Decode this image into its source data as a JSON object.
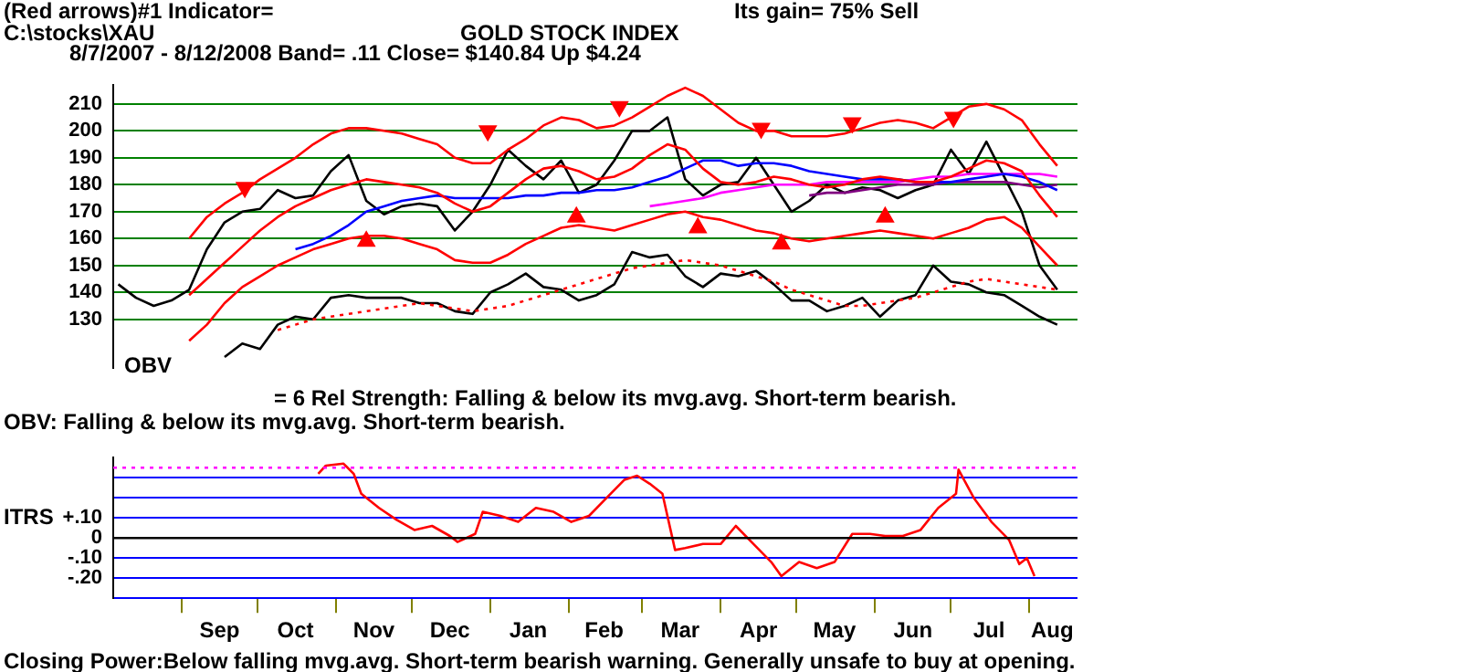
{
  "chart_data": [
    {
      "type": "line",
      "title": "GOLD STOCK INDEX",
      "subtitle": "8/7/2007 - 8/12/2008  Band= .11   Close= $140.84   Up $4.24",
      "annotations": [
        "(Red arrows)#1 Indicator=",
        "C:\\stocks\\XAU",
        "Its gain= 75% Sell",
        "OBV"
      ],
      "x": [
        "2007-08-07",
        "2007-08-14",
        "2007-08-21",
        "2007-08-28",
        "2007-09-04",
        "2007-09-11",
        "2007-09-18",
        "2007-09-25",
        "2007-10-02",
        "2007-10-09",
        "2007-10-16",
        "2007-10-23",
        "2007-10-30",
        "2007-11-06",
        "2007-11-13",
        "2007-11-20",
        "2007-11-27",
        "2007-12-04",
        "2007-12-11",
        "2007-12-18",
        "2007-12-25",
        "2008-01-01",
        "2008-01-08",
        "2008-01-15",
        "2008-01-22",
        "2008-01-29",
        "2008-02-05",
        "2008-02-12",
        "2008-02-19",
        "2008-02-26",
        "2008-03-04",
        "2008-03-11",
        "2008-03-18",
        "2008-03-25",
        "2008-04-01",
        "2008-04-08",
        "2008-04-15",
        "2008-04-22",
        "2008-04-29",
        "2008-05-06",
        "2008-05-13",
        "2008-05-20",
        "2008-05-27",
        "2008-06-03",
        "2008-06-10",
        "2008-06-17",
        "2008-06-24",
        "2008-07-01",
        "2008-07-08",
        "2008-07-15",
        "2008-07-22",
        "2008-07-29",
        "2008-08-05",
        "2008-08-12"
      ],
      "xlim": [
        "2007-08-05",
        "2008-08-20"
      ],
      "ylim": [
        112,
        217
      ],
      "yticks": [
        130,
        140,
        150,
        160,
        170,
        180,
        190,
        200,
        210
      ],
      "grid": "y",
      "tick_labels": "y",
      "series": [
        {
          "type": "line",
          "color": "#ff0000",
          "values": [
            null,
            null,
            null,
            null,
            160,
            168,
            173,
            177,
            182,
            186,
            190,
            195,
            199,
            201,
            201,
            200,
            199,
            197,
            195,
            190,
            188,
            188,
            193,
            197,
            202,
            205,
            204,
            201,
            202,
            205,
            209,
            213,
            216,
            213,
            208,
            203,
            200,
            200,
            198,
            198,
            198,
            199,
            201,
            203,
            204,
            203,
            201,
            205,
            209,
            210,
            208,
            204,
            195,
            187
          ]
        },
        {
          "type": "line",
          "color": "#ff0000",
          "values": [
            null,
            null,
            null,
            null,
            139,
            145,
            151,
            157,
            163,
            168,
            172,
            175,
            178,
            180,
            182,
            181,
            180,
            179,
            177,
            173,
            170,
            172,
            177,
            182,
            186,
            187,
            185,
            182,
            183,
            186,
            191,
            195,
            193,
            186,
            181,
            180,
            181,
            183,
            182,
            180,
            179,
            180,
            182,
            183,
            182,
            181,
            181,
            183,
            186,
            189,
            188,
            185,
            176,
            168
          ]
        },
        {
          "type": "line",
          "color": "#ff0000",
          "values": [
            null,
            null,
            null,
            null,
            122,
            128,
            136,
            142,
            146,
            150,
            153,
            156,
            158,
            160,
            161,
            161,
            160,
            158,
            156,
            152,
            151,
            151,
            154,
            158,
            161,
            164,
            165,
            164,
            163,
            165,
            167,
            169,
            170,
            168,
            167,
            165,
            163,
            162,
            160,
            159,
            160,
            161,
            162,
            163,
            162,
            161,
            160,
            162,
            164,
            167,
            168,
            164,
            157,
            150
          ]
        },
        {
          "type": "line",
          "color": "#0000ff",
          "values": [
            null,
            null,
            null,
            null,
            null,
            null,
            null,
            null,
            null,
            null,
            156,
            158,
            161,
            165,
            170,
            172,
            174,
            175,
            176,
            175,
            175,
            175,
            175,
            176,
            176,
            177,
            177,
            178,
            178,
            179,
            181,
            183,
            186,
            189,
            189,
            187,
            188,
            188,
            187,
            185,
            184,
            183,
            182,
            182,
            182,
            181,
            181,
            181,
            182,
            183,
            184,
            183,
            181,
            178
          ]
        },
        {
          "type": "line",
          "color": "#ff00ff",
          "values": [
            null,
            null,
            null,
            null,
            null,
            null,
            null,
            null,
            null,
            null,
            null,
            null,
            null,
            null,
            null,
            null,
            null,
            null,
            null,
            null,
            null,
            null,
            null,
            null,
            null,
            null,
            null,
            null,
            null,
            null,
            172,
            173,
            174,
            175,
            177,
            178,
            179,
            180,
            180,
            180,
            181,
            181,
            181,
            181,
            181,
            182,
            183,
            183,
            184,
            184,
            184,
            184,
            184,
            183
          ]
        },
        {
          "type": "line",
          "color": "#800080",
          "values": [
            null,
            null,
            null,
            null,
            null,
            null,
            null,
            null,
            null,
            null,
            null,
            null,
            null,
            null,
            null,
            null,
            null,
            null,
            null,
            null,
            null,
            null,
            null,
            null,
            null,
            null,
            null,
            null,
            null,
            null,
            null,
            null,
            null,
            null,
            null,
            null,
            null,
            null,
            null,
            176,
            177,
            177,
            178,
            179,
            180,
            180,
            180,
            181,
            181,
            181,
            181,
            180,
            179,
            180
          ]
        },
        {
          "type": "line",
          "color": "#ff0000",
          "line_style": "dotted",
          "values": [
            null,
            null,
            null,
            null,
            null,
            null,
            null,
            null,
            null,
            126,
            128,
            130,
            131,
            132,
            133,
            134,
            135,
            136,
            135,
            134,
            133,
            134,
            135,
            137,
            139,
            141,
            143,
            145,
            147,
            149,
            150,
            151,
            152,
            151,
            150,
            148,
            146,
            144,
            141,
            139,
            137,
            135,
            135,
            136,
            137,
            138,
            140,
            142,
            144,
            145,
            144,
            143,
            142,
            141
          ]
        },
        {
          "type": "line",
          "color": "#000000",
          "values": [
            null,
            null,
            null,
            null,
            null,
            null,
            116,
            121,
            119,
            128,
            131,
            130,
            138,
            139,
            138,
            138,
            138,
            136,
            136,
            133,
            132,
            140,
            143,
            147,
            142,
            141,
            137,
            139,
            143,
            155,
            153,
            154,
            146,
            142,
            147,
            146,
            148,
            143,
            137,
            137,
            133,
            135,
            138,
            131,
            137,
            139,
            150,
            144,
            143,
            140,
            139,
            135,
            131,
            128
          ]
        },
        {
          "type": "line",
          "color": "#000000",
          "values": [
            143,
            138,
            135,
            137,
            141,
            156,
            166,
            170,
            171,
            178,
            175,
            176,
            185,
            191,
            174,
            169,
            172,
            173,
            172,
            163,
            170,
            180,
            193,
            187,
            182,
            189,
            177,
            180,
            189,
            200,
            200,
            205,
            182,
            176,
            180,
            181,
            190,
            180,
            170,
            174,
            180,
            177,
            179,
            178,
            175,
            178,
            180,
            193,
            184,
            196,
            183,
            170,
            150,
            141
          ]
        },
        {
          "type": "scatter",
          "color": "#ff0000",
          "marker": "triangle",
          "x": [
            "2007-09-26",
            "2007-12-31",
            "2008-02-21",
            "2008-04-17",
            "2008-05-23",
            "2008-07-02"
          ],
          "values": [
            179,
            200,
            209,
            201,
            203,
            205
          ]
        },
        {
          "type": "scatter",
          "color": "#ff0000",
          "marker": "triangle",
          "x": [
            "2007-11-13",
            "2008-02-04",
            "2008-03-23",
            "2008-04-25",
            "2008-06-05"
          ],
          "values": [
            159,
            168,
            164,
            158,
            168
          ]
        }
      ]
    },
    {
      "type": "line",
      "ylabel": "ITRS",
      "annotations": [
        "= 6   Rel Strength: Falling & below its mvg.avg. Short-term bearish.",
        "OBV: Falling & below its mvg.avg. Short-term bearish.",
        "Closing Power:Below falling mvg.avg. Short-term bearish warning. Generally unsafe to buy at opening."
      ],
      "xlim": [
        "2007-08-05",
        "2008-08-20"
      ],
      "xticks": [
        {
          "value": "2007-09-01",
          "label": null
        },
        {
          "value": "2007-09-16",
          "label": "Sep"
        },
        {
          "value": "2007-10-01",
          "label": null
        },
        {
          "value": "2007-10-16",
          "label": "Oct"
        },
        {
          "value": "2007-11-01",
          "label": null
        },
        {
          "value": "2007-11-16",
          "label": "Nov"
        },
        {
          "value": "2007-12-01",
          "label": null
        },
        {
          "value": "2007-12-16",
          "label": "Dec"
        },
        {
          "value": "2008-01-01",
          "label": null
        },
        {
          "value": "2008-01-16",
          "label": "Jan"
        },
        {
          "value": "2008-02-01",
          "label": null
        },
        {
          "value": "2008-02-15",
          "label": "Feb"
        },
        {
          "value": "2008-03-01",
          "label": null
        },
        {
          "value": "2008-03-16",
          "label": "Mar"
        },
        {
          "value": "2008-04-01",
          "label": null
        },
        {
          "value": "2008-04-16",
          "label": "Apr"
        },
        {
          "value": "2008-05-01",
          "label": null
        },
        {
          "value": "2008-05-16",
          "label": "May"
        },
        {
          "value": "2008-06-01",
          "label": null
        },
        {
          "value": "2008-06-16",
          "label": "Jun"
        },
        {
          "value": "2008-07-01",
          "label": null
        },
        {
          "value": "2008-07-16",
          "label": "Jul"
        },
        {
          "value": "2008-08-01",
          "label": null
        },
        {
          "value": "2008-08-10",
          "label": "Aug"
        }
      ],
      "ylim": [
        -0.3,
        0.4
      ],
      "yticks": [
        {
          "value": -0.3,
          "label": null
        },
        {
          "value": -0.2,
          "label": "-.20"
        },
        {
          "value": -0.1,
          "label": "-.10"
        },
        {
          "value": 0,
          "label": "0"
        },
        {
          "value": 0.1,
          "label": "+.10"
        },
        {
          "value": 0.2,
          "label": null
        },
        {
          "value": 0.3,
          "label": null
        }
      ],
      "grid": "y",
      "ref_lines": [
        {
          "axis": "y",
          "value": 0,
          "label": null,
          "color": "#000000"
        },
        {
          "axis": "y",
          "value": 0.35,
          "label": null,
          "color": "#ff00ff",
          "line_style": "dotted"
        }
      ],
      "series": [
        {
          "type": "line",
          "color": "#ff0000",
          "x": [
            "2007-10-25",
            "2007-10-28",
            "2007-11-04",
            "2007-11-08",
            "2007-11-11",
            "2007-11-18",
            "2007-11-25",
            "2007-12-02",
            "2007-12-09",
            "2007-12-16",
            "2007-12-19",
            "2007-12-26",
            "2007-12-29",
            "2008-01-05",
            "2008-01-12",
            "2008-01-19",
            "2008-01-26",
            "2008-02-02",
            "2008-02-09",
            "2008-02-16",
            "2008-02-23",
            "2008-02-28",
            "2008-03-04",
            "2008-03-09",
            "2008-03-14",
            "2008-03-18",
            "2008-03-25",
            "2008-04-01",
            "2008-04-07",
            "2008-04-14",
            "2008-04-21",
            "2008-04-25",
            "2008-05-02",
            "2008-05-09",
            "2008-05-16",
            "2008-05-23",
            "2008-05-30",
            "2008-06-05",
            "2008-06-12",
            "2008-06-19",
            "2008-06-26",
            "2008-07-03",
            "2008-07-04",
            "2008-07-10",
            "2008-07-17",
            "2008-07-24",
            "2008-07-28",
            "2008-07-31",
            "2008-08-03"
          ],
          "values": [
            0.32,
            0.36,
            0.37,
            0.32,
            0.22,
            0.15,
            0.09,
            0.04,
            0.06,
            0.01,
            -0.02,
            0.02,
            0.13,
            0.11,
            0.08,
            0.15,
            0.13,
            0.08,
            0.11,
            0.2,
            0.29,
            0.31,
            0.27,
            0.22,
            -0.06,
            -0.05,
            -0.03,
            -0.03,
            0.06,
            -0.03,
            -0.12,
            -0.19,
            -0.12,
            -0.15,
            -0.12,
            0.02,
            0.02,
            0.01,
            0.01,
            0.04,
            0.15,
            0.22,
            0.34,
            0.2,
            0.08,
            -0.01,
            -0.13,
            -0.1,
            -0.19
          ]
        }
      ]
    }
  ]
}
